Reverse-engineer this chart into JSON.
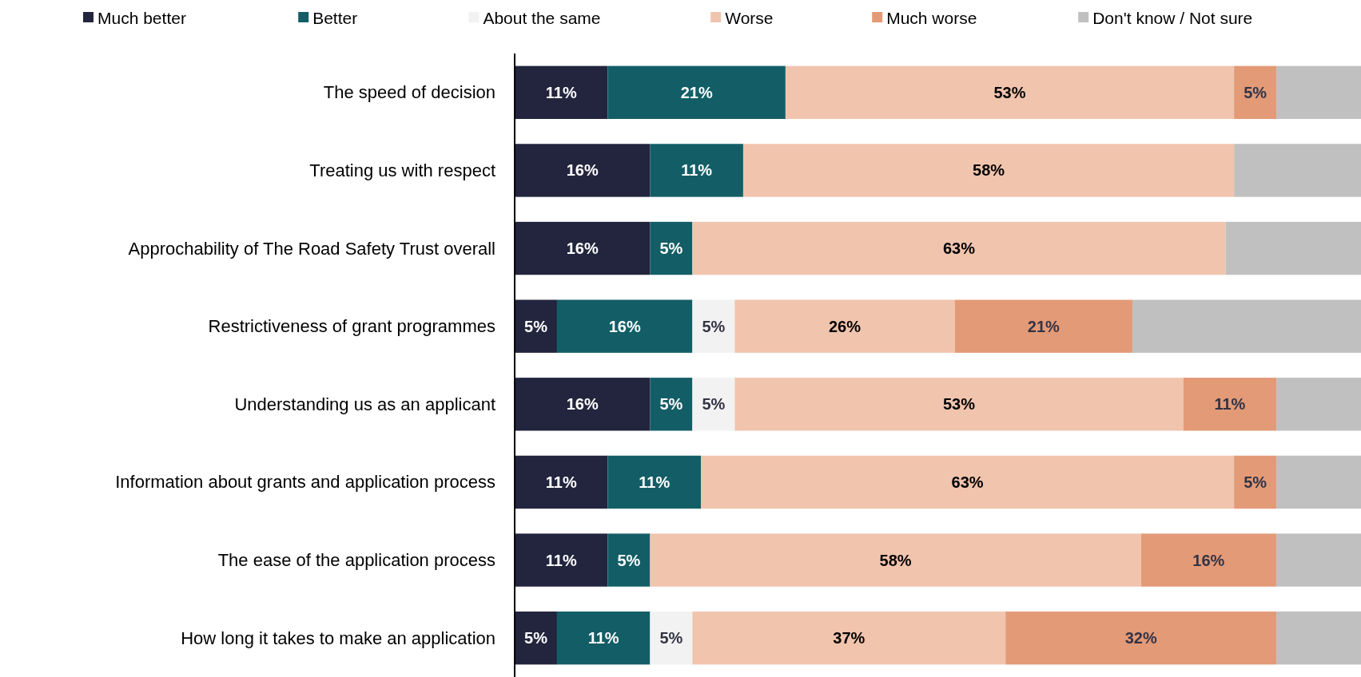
{
  "chart_data": {
    "type": "bar",
    "orientation": "horizontal",
    "stacked": true,
    "legend": "top",
    "tick_labels": "y",
    "xlim": [
      0,
      100
    ],
    "categories": [
      "The speed of decision",
      "Treating us with respect",
      "Approchability of The Road Safety Trust overall",
      "Restrictiveness of grant programmes",
      "Understanding us as an applicant",
      "Information about grants and application process",
      "The ease of the application process",
      "How long it takes to make an application"
    ],
    "series": [
      {
        "name": "Much better",
        "color": "#22253d",
        "values": [
          11,
          16,
          16,
          5,
          16,
          11,
          11,
          5
        ],
        "value_labels": [
          "11%",
          "16%",
          "16%",
          "5%",
          "16%",
          "11%",
          "11%",
          "5%"
        ]
      },
      {
        "name": "Better",
        "color": "#135e66",
        "values": [
          21,
          11,
          5,
          16,
          5,
          11,
          5,
          11
        ],
        "value_labels": [
          "21%",
          "11%",
          "5%",
          "16%",
          "5%",
          "11%",
          "5%",
          "11%"
        ]
      },
      {
        "name": "About the same",
        "color": "#f2f2f2",
        "values": [
          0,
          0,
          0,
          5,
          5,
          0,
          0,
          5
        ],
        "value_labels": [
          null,
          null,
          null,
          "5%",
          "5%",
          null,
          null,
          "5%"
        ]
      },
      {
        "name": "Worse",
        "color": "#f1c4ae",
        "values": [
          53,
          58,
          63,
          26,
          53,
          63,
          58,
          37
        ],
        "value_labels": [
          "53%",
          "58%",
          "63%",
          "26%",
          "53%",
          "63%",
          "58%",
          "37%"
        ]
      },
      {
        "name": "Much worse",
        "color": "#e39a77",
        "values": [
          5,
          0,
          0,
          21,
          11,
          5,
          16,
          32
        ],
        "value_labels": [
          "5%",
          null,
          null,
          "21%",
          "11%",
          "5%",
          "16%",
          "32%"
        ]
      },
      {
        "name": "Don't know / Not sure",
        "color": "#c0c0c0",
        "values": [
          10,
          15,
          16,
          27,
          10,
          10,
          10,
          10
        ],
        "value_labels": [
          null,
          null,
          null,
          null,
          null,
          null,
          null,
          null
        ]
      }
    ]
  }
}
